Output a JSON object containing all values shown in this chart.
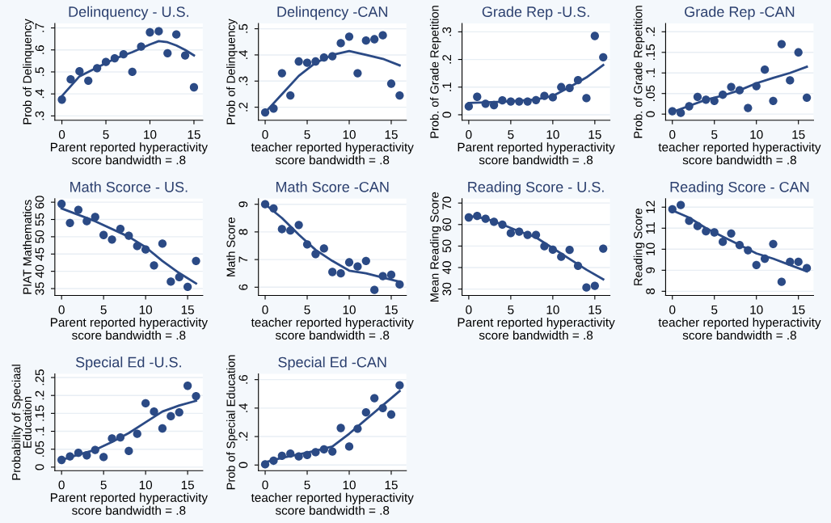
{
  "chart_data": [
    {
      "type": "scatter",
      "title": "Delinquency - U.S.",
      "xlabel": "Parent reported hyperactivity\nscore bandwidth = .8",
      "ylabel": "Prob of Delinquency",
      "xlim": [
        -0.8,
        16
      ],
      "xticks": [
        0,
        5,
        10,
        15
      ],
      "ylim": [
        0.28,
        0.72
      ],
      "yticks": [
        {
          "value": 0.3,
          "label": ".3"
        },
        {
          "value": 0.4,
          "label": ".4"
        },
        {
          "value": 0.5,
          "label": ".5"
        },
        {
          "value": 0.6,
          "label": ".6"
        },
        {
          "value": 0.7,
          "label": ".7"
        }
      ],
      "grid": "y",
      "series": [
        {
          "type": "scatter",
          "marker": "circle",
          "color": "#2b4a85",
          "x": [
            0,
            1,
            2,
            3,
            4,
            5,
            6,
            7,
            8,
            9,
            10,
            11,
            12,
            13,
            14,
            15
          ],
          "values": [
            0.374,
            0.466,
            0.503,
            0.46,
            0.517,
            0.545,
            0.562,
            0.58,
            0.5,
            0.615,
            0.68,
            0.685,
            0.585,
            0.67,
            0.575,
            0.43
          ]
        },
        {
          "type": "line",
          "color": "#2b4a85",
          "x": [
            0,
            2,
            4,
            6,
            8,
            10,
            11,
            12,
            13,
            14,
            15
          ],
          "values": [
            0.39,
            0.48,
            0.52,
            0.56,
            0.59,
            0.625,
            0.64,
            0.635,
            0.62,
            0.6,
            0.575
          ]
        }
      ]
    },
    {
      "type": "scatter",
      "title": "Delinqency -CAN",
      "xlabel": "teacher reported hyperactivity\nscore bandwidth = .8",
      "ylabel": "Prob of Delinquency",
      "xlim": [
        -0.8,
        16.8
      ],
      "xticks": [
        0,
        5,
        10,
        15
      ],
      "ylim": [
        0.15,
        0.52
      ],
      "yticks": [
        {
          "value": 0.2,
          "label": ".2"
        },
        {
          "value": 0.3,
          "label": ".3"
        },
        {
          "value": 0.4,
          "label": ".4"
        },
        {
          "value": 0.5,
          "label": ".5"
        }
      ],
      "grid": "y",
      "series": [
        {
          "type": "scatter",
          "marker": "circle",
          "color": "#2b4a85",
          "x": [
            0,
            1,
            2,
            3,
            4,
            5,
            6,
            7,
            8,
            9,
            10,
            11,
            12,
            13,
            14,
            15,
            16
          ],
          "values": [
            0.18,
            0.195,
            0.33,
            0.245,
            0.375,
            0.37,
            0.375,
            0.39,
            0.395,
            0.445,
            0.47,
            0.33,
            0.455,
            0.46,
            0.475,
            0.29,
            0.245
          ]
        },
        {
          "type": "line",
          "color": "#2b4a85",
          "x": [
            0,
            2,
            4,
            6,
            8,
            10,
            12,
            14,
            16
          ],
          "values": [
            0.18,
            0.25,
            0.32,
            0.37,
            0.4,
            0.415,
            0.4,
            0.385,
            0.36
          ]
        }
      ]
    },
    {
      "type": "scatter",
      "title": "Grade Rep -U.S.",
      "xlabel": "Parent reported hyperactivity\nscore bandwidth = .8",
      "ylabel": "Prob. of Grade Repetition",
      "xlim": [
        -0.8,
        16.8
      ],
      "xticks": [
        0,
        5,
        10,
        15
      ],
      "ylim": [
        -0.02,
        0.33
      ],
      "yticks": [
        {
          "value": 0,
          "label": "0"
        },
        {
          "value": 0.1,
          "label": ".1"
        },
        {
          "value": 0.2,
          "label": ".2"
        },
        {
          "value": 0.3,
          "label": ".3"
        }
      ],
      "grid": "y",
      "series": [
        {
          "type": "scatter",
          "marker": "circle",
          "color": "#2b4a85",
          "x": [
            0,
            1,
            2,
            3,
            4,
            5,
            6,
            7,
            8,
            9,
            10,
            11,
            12,
            13,
            14,
            15,
            16
          ],
          "values": [
            0.03,
            0.065,
            0.04,
            0.035,
            0.052,
            0.048,
            0.048,
            0.048,
            0.053,
            0.068,
            0.063,
            0.1,
            0.097,
            0.125,
            0.06,
            0.285,
            0.208
          ]
        },
        {
          "type": "line",
          "color": "#2b4a85",
          "x": [
            0,
            4,
            8,
            10,
            12,
            14,
            16
          ],
          "values": [
            0.043,
            0.047,
            0.055,
            0.068,
            0.1,
            0.135,
            0.18
          ]
        }
      ]
    },
    {
      "type": "scatter",
      "title": "Grade Rep -CAN",
      "xlabel": "teacher reported hyperactivity\nscore bandwidth = .8",
      "ylabel": "Prob. of Grade Repetition",
      "xlim": [
        -0.8,
        16.8
      ],
      "xticks": [
        0,
        5,
        10,
        15
      ],
      "ylim": [
        -0.015,
        0.22
      ],
      "yticks": [
        {
          "value": 0,
          "label": "0"
        },
        {
          "value": 0.05,
          "label": ".05"
        },
        {
          "value": 0.1,
          "label": ".1"
        },
        {
          "value": 0.15,
          "label": ".15"
        },
        {
          "value": 0.2,
          "label": ".2"
        }
      ],
      "grid": "y",
      "series": [
        {
          "type": "scatter",
          "marker": "circle",
          "color": "#2b4a85",
          "x": [
            0,
            1,
            2,
            3,
            4,
            5,
            6,
            7,
            8,
            9,
            10,
            11,
            12,
            13,
            14,
            15,
            16
          ],
          "values": [
            0.007,
            0.003,
            0.019,
            0.042,
            0.035,
            0.032,
            0.047,
            0.066,
            0.058,
            0.015,
            0.068,
            0.108,
            0.032,
            0.17,
            0.082,
            0.15,
            0.04
          ]
        },
        {
          "type": "line",
          "color": "#2b4a85",
          "x": [
            0,
            2,
            4,
            6,
            8,
            10,
            12,
            14,
            16
          ],
          "values": [
            0.005,
            0.02,
            0.035,
            0.045,
            0.058,
            0.075,
            0.088,
            0.1,
            0.115
          ]
        }
      ]
    },
    {
      "type": "scatter",
      "title": "Math Scorce - US.",
      "xlabel": "Parent reported hyperactivity\nscore bandwidth = .8",
      "ylabel": "PIAT Mathematics",
      "xlim": [
        -0.8,
        16.8
      ],
      "xticks": [
        0,
        5,
        10,
        15
      ],
      "ylim": [
        33,
        61
      ],
      "yticks": [
        35,
        40,
        45,
        50,
        55,
        60
      ],
      "grid": "y",
      "series": [
        {
          "type": "scatter",
          "marker": "circle",
          "color": "#2b4a85",
          "x": [
            0,
            1,
            2,
            3,
            4,
            5,
            6,
            7,
            8,
            9,
            10,
            11,
            12,
            13,
            14,
            15,
            16
          ],
          "values": [
            59.5,
            54,
            57.8,
            54.5,
            55.7,
            50.5,
            49.2,
            52.3,
            50.3,
            47.3,
            46.3,
            41.7,
            48,
            37,
            38.3,
            35.5,
            43
          ]
        },
        {
          "type": "line",
          "color": "#2b4a85",
          "x": [
            0,
            4,
            8,
            10,
            12,
            14,
            16
          ],
          "values": [
            58.2,
            54.5,
            50,
            47,
            43,
            39.5,
            36.5
          ]
        }
      ]
    },
    {
      "type": "scatter",
      "title": "Math Score -CAN",
      "xlabel": "teacher reported hyperactivity\nscore bandwidth = .8",
      "ylabel": "Math Score",
      "xlim": [
        -0.8,
        16.8
      ],
      "xticks": [
        0,
        5,
        10,
        15
      ],
      "ylim": [
        5.7,
        9.2
      ],
      "yticks": [
        6,
        7,
        8,
        9
      ],
      "grid": "y",
      "series": [
        {
          "type": "scatter",
          "marker": "circle",
          "color": "#2b4a85",
          "x": [
            0,
            1,
            2,
            3,
            4,
            5,
            6,
            7,
            8,
            9,
            10,
            11,
            12,
            13,
            14,
            15,
            16
          ],
          "values": [
            9,
            8.85,
            8.1,
            8.05,
            8.25,
            7.55,
            7.2,
            7.4,
            6.55,
            6.5,
            6.9,
            6.75,
            6.95,
            5.9,
            6.4,
            6.45,
            6.1
          ]
        },
        {
          "type": "line",
          "color": "#2b4a85",
          "x": [
            0,
            2,
            4,
            6,
            8,
            10,
            12,
            14,
            16
          ],
          "values": [
            9,
            8.5,
            7.9,
            7.35,
            6.95,
            6.6,
            6.5,
            6.35,
            6.2
          ]
        }
      ]
    },
    {
      "type": "scatter",
      "title": "Reading Score - U.S.",
      "xlabel": "Parent reported hyperactivity\nscore bandwidth = .8",
      "ylabel": "Mean Reading Score",
      "xlim": [
        -0.8,
        16.8
      ],
      "xticks": [
        0,
        5,
        10,
        15
      ],
      "ylim": [
        27,
        72
      ],
      "yticks": [
        30,
        40,
        50,
        60,
        70
      ],
      "grid": "y",
      "series": [
        {
          "type": "scatter",
          "marker": "circle",
          "color": "#2b4a85",
          "x": [
            0,
            1,
            2,
            3,
            4,
            5,
            6,
            7,
            8,
            9,
            10,
            11,
            12,
            13,
            14,
            15,
            16
          ],
          "values": [
            63.3,
            64,
            62.7,
            61.3,
            60,
            56,
            56.7,
            55.2,
            55.2,
            49.9,
            48.3,
            45,
            48.2,
            40.8,
            30.7,
            31.5,
            48.8
          ]
        },
        {
          "type": "line",
          "color": "#2b4a85",
          "x": [
            0,
            2,
            4,
            6,
            8,
            10,
            12,
            14,
            16
          ],
          "values": [
            64,
            62.8,
            60,
            56.8,
            54,
            49,
            44,
            39,
            34.5
          ]
        }
      ]
    },
    {
      "type": "scatter",
      "title": "Reading Score - CAN",
      "xlabel": "teacher reported hyperactivity\nscore bandwidth = .8",
      "ylabel": "Reading Score",
      "xlim": [
        -0.8,
        16.8
      ],
      "xticks": [
        0,
        5,
        10,
        15
      ],
      "ylim": [
        7.8,
        12.4
      ],
      "yticks": [
        8,
        9,
        10,
        11,
        12
      ],
      "grid": "y",
      "series": [
        {
          "type": "scatter",
          "marker": "circle",
          "color": "#2b4a85",
          "x": [
            0,
            1,
            2,
            3,
            4,
            5,
            6,
            7,
            8,
            9,
            10,
            11,
            12,
            13,
            14,
            15,
            16
          ],
          "values": [
            11.9,
            12.1,
            11.35,
            11.1,
            10.85,
            10.8,
            10.35,
            10.75,
            10.2,
            9.95,
            9.25,
            9.55,
            10.25,
            8.45,
            9.4,
            9.4,
            9.1
          ]
        },
        {
          "type": "line",
          "color": "#2b4a85",
          "x": [
            0,
            2,
            4,
            6,
            8,
            10,
            12,
            14,
            16
          ],
          "values": [
            11.85,
            11.5,
            11,
            10.6,
            10.2,
            9.8,
            9.55,
            9.25,
            8.95
          ]
        }
      ]
    },
    {
      "type": "scatter",
      "title": "Special Ed -U.S.",
      "xlabel": "Parent reported hyperactivity\nscore bandwidth = .8",
      "ylabel": "Probability of Speciaal\nEducation",
      "xlim": [
        -0.8,
        16.8
      ],
      "xticks": [
        0,
        5,
        10,
        15
      ],
      "ylim": [
        -0.01,
        0.26
      ],
      "yticks": [
        {
          "value": 0,
          "label": "0"
        },
        {
          "value": 0.05,
          "label": ".05"
        },
        {
          "value": 0.1,
          "label": ".1"
        },
        {
          "value": 0.15,
          "label": ".15"
        },
        {
          "value": 0.2,
          "label": ".2"
        },
        {
          "value": 0.25,
          "label": ".25"
        }
      ],
      "grid": "y",
      "series": [
        {
          "type": "scatter",
          "marker": "circle",
          "color": "#2b4a85",
          "x": [
            0,
            1,
            2,
            3,
            4,
            5,
            6,
            7,
            8,
            9,
            10,
            11,
            12,
            13,
            14,
            15,
            16
          ],
          "values": [
            0.02,
            0.03,
            0.04,
            0.033,
            0.048,
            0.028,
            0.08,
            0.083,
            0.045,
            0.093,
            0.178,
            0.155,
            0.108,
            0.142,
            0.153,
            0.227,
            0.198
          ]
        },
        {
          "type": "line",
          "color": "#2b4a85",
          "x": [
            0,
            2,
            4,
            6,
            8,
            10,
            12,
            14,
            16
          ],
          "values": [
            0.02,
            0.035,
            0.048,
            0.07,
            0.095,
            0.125,
            0.155,
            0.172,
            0.185
          ]
        }
      ]
    },
    {
      "type": "scatter",
      "title": "Special Ed -CAN",
      "xlabel": "teacher reported hyperactivity\nscore bandwidth = .8",
      "ylabel": "Prob of Special Education",
      "xlim": [
        -0.8,
        16.8
      ],
      "xticks": [
        0,
        5,
        10,
        15
      ],
      "ylim": [
        -0.04,
        0.64
      ],
      "yticks": [
        {
          "value": 0,
          "label": "0"
        },
        {
          "value": 0.2,
          "label": ".2"
        },
        {
          "value": 0.4,
          "label": ".4"
        },
        {
          "value": 0.6,
          "label": ".6"
        }
      ],
      "grid": "y",
      "series": [
        {
          "type": "scatter",
          "marker": "circle",
          "color": "#2b4a85",
          "x": [
            0,
            1,
            2,
            3,
            4,
            5,
            6,
            7,
            8,
            9,
            10,
            11,
            12,
            13,
            14,
            15,
            16
          ],
          "values": [
            0.005,
            0.03,
            0.065,
            0.08,
            0.06,
            0.07,
            0.09,
            0.11,
            0.095,
            0.26,
            0.13,
            0.255,
            0.37,
            0.47,
            0.4,
            0.355,
            0.56
          ]
        },
        {
          "type": "line",
          "color": "#2b4a85",
          "x": [
            0,
            2,
            4,
            6,
            8,
            10,
            12,
            14,
            16
          ],
          "values": [
            0.02,
            0.05,
            0.075,
            0.1,
            0.13,
            0.22,
            0.32,
            0.42,
            0.52
          ]
        }
      ]
    }
  ]
}
